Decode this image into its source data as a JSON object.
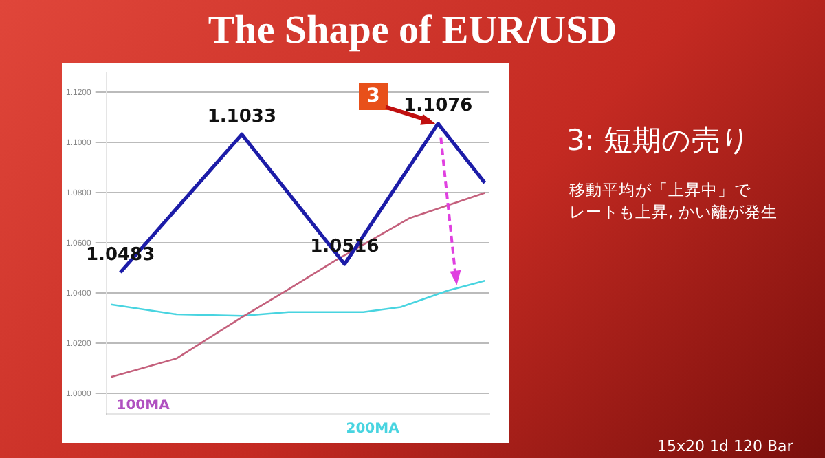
{
  "chart_data": {
    "type": "line",
    "title": "The Shape of EUR/USD",
    "categories": [
      null,
      null,
      null,
      null,
      null,
      null,
      null,
      null,
      null,
      null,
      null,
      null,
      null,
      null,
      null,
      null,
      null,
      null,
      null,
      null,
      null,
      null,
      null,
      null,
      null,
      null,
      null,
      null,
      null,
      null,
      null,
      null,
      null,
      null,
      null,
      null,
      null,
      null,
      null,
      null,
      null
    ],
    "ylim": [
      0.992,
      1.128
    ],
    "yticks": [
      {
        "value": 1.0,
        "label": "1.0000"
      },
      {
        "value": 1.02,
        "label": "1.0200"
      },
      {
        "value": 1.04,
        "label": "1.0400"
      },
      {
        "value": 1.06,
        "label": "1.0600"
      },
      {
        "value": 1.08,
        "label": "1.0800"
      },
      {
        "value": 1.1,
        "label": "1.1000"
      },
      {
        "value": 1.12,
        "label": "1.1200"
      }
    ],
    "grid": "y",
    "legend": false,
    "marker": "none",
    "series": [
      {
        "color": "#1c1ca8",
        "values": [
          null,
          1.0483,
          null,
          null,
          null,
          null,
          null,
          null,
          null,
          null,
          null,
          null,
          null,
          null,
          1.1033,
          null,
          null,
          null,
          null,
          null,
          null,
          null,
          null,
          null,
          null,
          1.0516,
          null,
          null,
          null,
          null,
          null,
          null,
          null,
          null,
          null,
          1.1076,
          null,
          null,
          null,
          null,
          1.084
        ],
        "value_labels": [
          null,
          "1.0483",
          null,
          null,
          null,
          null,
          null,
          null,
          null,
          null,
          null,
          null,
          null,
          null,
          "1.1033",
          null,
          null,
          null,
          null,
          null,
          null,
          null,
          null,
          null,
          null,
          "1.0516",
          null,
          null,
          null,
          null,
          null,
          null,
          null,
          null,
          null,
          "1.1076",
          null,
          null,
          null,
          null,
          null
        ]
      },
      {
        "name": "100MA",
        "color": "#c4607c",
        "values": [
          1.0066,
          null,
          null,
          null,
          null,
          null,
          null,
          1.014,
          null,
          null,
          null,
          null,
          null,
          null,
          1.0304,
          null,
          null,
          null,
          null,
          1.0416,
          null,
          null,
          null,
          null,
          1.053,
          null,
          null,
          null,
          null,
          null,
          null,
          null,
          1.07,
          null,
          null,
          null,
          null,
          null,
          null,
          null,
          1.08
        ]
      },
      {
        "name": "200MA",
        "color": "#48d4e0",
        "values": [
          1.0355,
          null,
          null,
          null,
          null,
          null,
          null,
          1.0316,
          null,
          null,
          null,
          null,
          null,
          null,
          1.031,
          null,
          null,
          null,
          null,
          1.0325,
          null,
          null,
          null,
          null,
          null,
          null,
          null,
          1.0325,
          null,
          null,
          null,
          1.0345,
          null,
          null,
          null,
          null,
          1.041,
          null,
          null,
          null,
          1.045
        ]
      }
    ],
    "annotations": [
      "3",
      "3: 短期の売り",
      "移動平均が「上昇中」で",
      "レートも上昇, かい離が発生",
      "15x20  1d  120 Bar"
    ]
  }
}
